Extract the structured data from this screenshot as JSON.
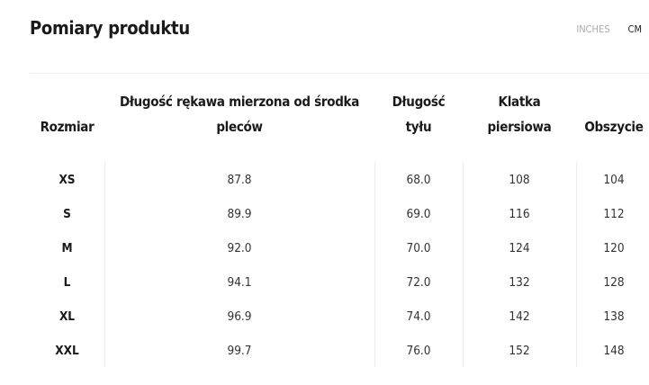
{
  "title": "Pomiary produktu",
  "units": {
    "options": [
      "INCHES",
      "CM"
    ],
    "selected": "CM"
  },
  "table": {
    "headers": [
      [
        "",
        "Rozmiar"
      ],
      [
        "Długość rękawa mierzona od środka",
        "pleców"
      ],
      [
        "Długość",
        "tyłu"
      ],
      [
        "Klatka",
        "piersiowa"
      ],
      [
        "",
        "Obszycie"
      ]
    ],
    "rows": [
      [
        "XS",
        "87.8",
        "68.0",
        "108",
        "104"
      ],
      [
        "S",
        "89.9",
        "69.0",
        "116",
        "112"
      ],
      [
        "M",
        "92.0",
        "70.0",
        "124",
        "120"
      ],
      [
        "L",
        "94.1",
        "72.0",
        "132",
        "128"
      ],
      [
        "XL",
        "96.9",
        "74.0",
        "142",
        "138"
      ],
      [
        "XXL",
        "99.7",
        "76.0",
        "152",
        "148"
      ]
    ]
  }
}
